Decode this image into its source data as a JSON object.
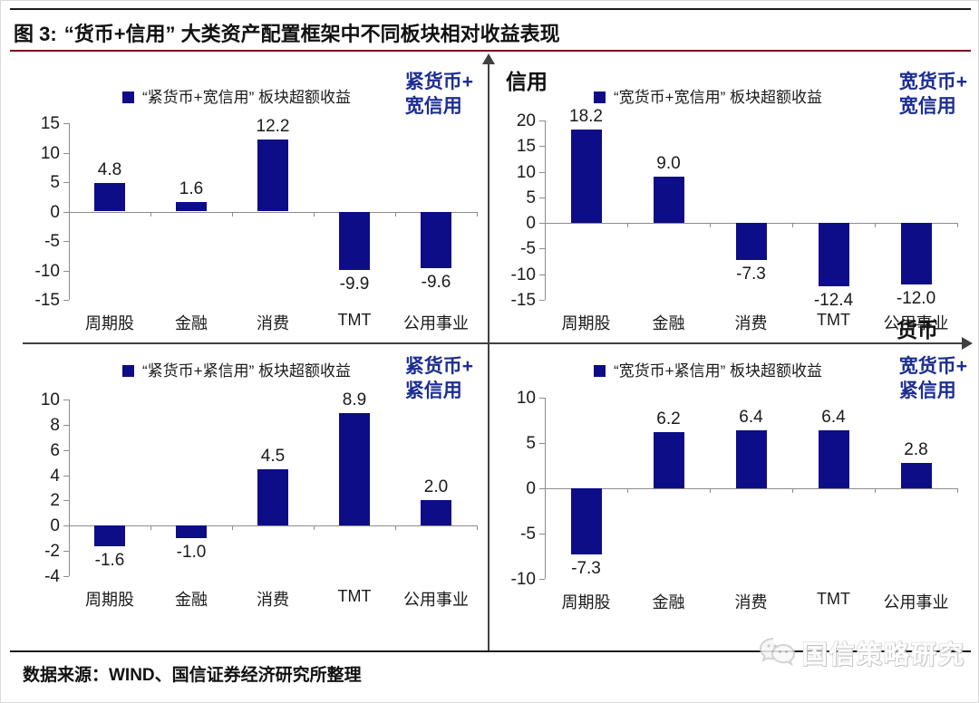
{
  "header": {
    "title_prefix": "图 3:",
    "title_rest": "“货币+信用” 大类资产配置框架中不同板块相对收益表现"
  },
  "axis_labels": {
    "y": "信用",
    "x": "货币"
  },
  "colors": {
    "bar": "#0d0d87",
    "quadrant_label": "#1c2e91",
    "title_rule": "#7c1416"
  },
  "footer": {
    "source": "数据来源：WIND、国信证券经济研究所整理",
    "watermark": "国信策略研究"
  },
  "chart_data": [
    {
      "type": "bar",
      "legend": "“紧货币+宽信用” 板块超额收益",
      "quadrant_label": [
        "紧货币+",
        "宽信用"
      ],
      "categories": [
        "周期股",
        "金融",
        "消费",
        "TMT",
        "公用事业"
      ],
      "values": [
        4.8,
        1.6,
        12.2,
        -9.9,
        -9.6
      ],
      "labels": [
        "4.8",
        "1.6",
        "12.2",
        "-9.9",
        "-9.6"
      ],
      "ticks": [
        15,
        10,
        5,
        0,
        -5,
        -10,
        -15
      ],
      "ylim": [
        -15,
        15
      ],
      "grid": false,
      "legend_position": "top"
    },
    {
      "type": "bar",
      "legend": "“宽货币+宽信用” 板块超额收益",
      "quadrant_label": [
        "宽货币+",
        "宽信用"
      ],
      "categories": [
        "周期股",
        "金融",
        "消费",
        "TMT",
        "公用事业"
      ],
      "values": [
        18.2,
        9.0,
        -7.3,
        -12.4,
        -12.0
      ],
      "labels": [
        "18.2",
        "9.0",
        "-7.3",
        "-12.4",
        "-12.0"
      ],
      "ticks": [
        20,
        15,
        10,
        5,
        0,
        -5,
        -10,
        -15
      ],
      "ylim": [
        -15,
        20
      ],
      "grid": false,
      "legend_position": "top"
    },
    {
      "type": "bar",
      "legend": "“紧货币+紧信用” 板块超额收益",
      "quadrant_label": [
        "紧货币+",
        "紧信用"
      ],
      "categories": [
        "周期股",
        "金融",
        "消费",
        "TMT",
        "公用事业"
      ],
      "values": [
        -1.6,
        -1.0,
        4.5,
        8.9,
        2.0
      ],
      "labels": [
        "-1.6",
        "-1.0",
        "4.5",
        "8.9",
        "2.0"
      ],
      "ticks": [
        10,
        8,
        6,
        4,
        2,
        0,
        -2,
        -4
      ],
      "ylim": [
        -4,
        10
      ],
      "grid": false,
      "legend_position": "top"
    },
    {
      "type": "bar",
      "legend": "“宽货币+紧信用” 板块超额收益",
      "quadrant_label": [
        "宽货币+",
        "紧信用"
      ],
      "categories": [
        "周期股",
        "金融",
        "消费",
        "TMT",
        "公用事业"
      ],
      "values": [
        -7.3,
        6.2,
        6.4,
        6.4,
        2.8
      ],
      "labels": [
        "-7.3",
        "6.2",
        "6.4",
        "6.4",
        "2.8"
      ],
      "ticks": [
        10,
        5,
        0,
        -5,
        -10
      ],
      "ylim": [
        -10,
        10
      ],
      "grid": false,
      "legend_position": "top"
    }
  ]
}
